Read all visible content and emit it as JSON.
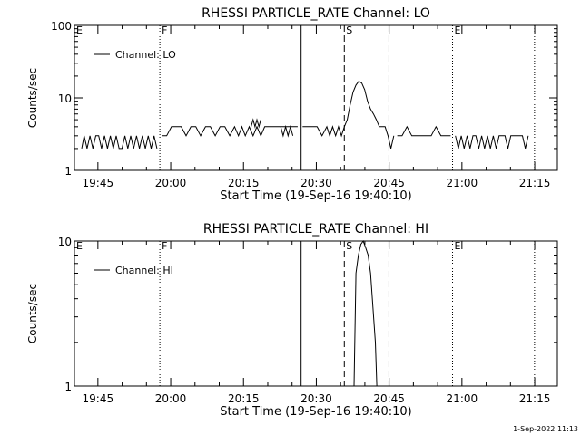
{
  "footer": {
    "timestamp": "1-Sep-2022 11:13"
  },
  "chart_data": [
    {
      "type": "line",
      "title": "RHESSI PARTICLE_RATE Channel: LO",
      "xlabel": "Start Time (19-Sep-16 19:40:10)",
      "ylabel": "Counts/sec",
      "yscale": "log",
      "ylim": [
        1,
        100
      ],
      "xlim_minutes": [
        0,
        99.5
      ],
      "y_tick_labels": [
        "1",
        "10",
        "100"
      ],
      "x_tick_labels": [
        "19:45",
        "20:00",
        "20:15",
        "20:30",
        "20:45",
        "21:00",
        "21:15"
      ],
      "legend": {
        "label": "Channel: LO",
        "position": "top-left"
      },
      "markers": [
        {
          "label": "E",
          "minute": 0,
          "style": "dotted"
        },
        {
          "label": "F",
          "minute": 17.6,
          "style": "dotted"
        },
        {
          "label": "",
          "minute": 46.7,
          "style": "solid"
        },
        {
          "label": "S",
          "minute": 55.6,
          "style": "dashed"
        },
        {
          "label": "",
          "minute": 64.8,
          "style": "dashed"
        },
        {
          "label": "E",
          "minute": 77.9,
          "style": "dotted"
        },
        {
          "label": "",
          "minute": 94.8,
          "style": "dotted"
        }
      ],
      "series": [
        {
          "name": "Channel: LO",
          "segments": [
            {
              "x": [
                1.5,
                2,
                2.6,
                3.2,
                3.8,
                4.4,
                5,
                5.6,
                6.2,
                6.8,
                7.4,
                8,
                8.6,
                9.2,
                9.8,
                10.4,
                11,
                11.6,
                12.2,
                12.8,
                13.4,
                14,
                14.6,
                15.2,
                15.8,
                16.4,
                17
              ],
              "y": [
                2,
                3,
                2,
                3,
                2,
                3,
                3,
                2,
                3,
                2,
                3,
                2,
                3,
                2,
                2,
                3,
                2,
                3,
                2,
                3,
                2,
                3,
                2,
                3,
                2,
                3,
                2
              ]
            },
            {
              "x": [
                18,
                19,
                20,
                21,
                22,
                23,
                24,
                25,
                26,
                27,
                28,
                29,
                30,
                31,
                32,
                33,
                33.8,
                34.5,
                35.2,
                36,
                36.8,
                37.6,
                38.4,
                39.2,
                40,
                41,
                42,
                43,
                44,
                45,
                46
              ],
              "y": [
                3,
                3,
                4,
                4,
                4,
                3,
                4,
                4,
                3,
                4,
                4,
                3,
                4,
                4,
                3,
                4,
                3,
                4,
                3,
                4,
                3,
                4,
                3,
                4,
                4,
                4,
                4,
                4,
                4,
                4,
                4
              ]
            },
            {
              "x": [
                36.4,
                36.8,
                37.2,
                37.6,
                38,
                38.4
              ],
              "y": [
                4,
                5,
                4,
                5,
                4,
                5
              ]
            },
            {
              "x": [
                42.5,
                43,
                43.5,
                44,
                44.5,
                45
              ],
              "y": [
                4,
                3,
                4,
                3,
                4,
                3
              ]
            },
            {
              "x": [
                47,
                48,
                49,
                50,
                51,
                52,
                52.6,
                53.2,
                53.8,
                54.4,
                55,
                55.6,
                56.2,
                56.8,
                57.4,
                58,
                58.6,
                59.2,
                59.8,
                60.4,
                61,
                61.6,
                62.2,
                62.8,
                63.4,
                64,
                64.6,
                65.2,
                65.8
              ],
              "y": [
                4,
                4,
                4,
                4,
                3,
                4,
                3,
                4,
                3,
                4,
                3,
                4,
                5,
                8,
                12,
                15,
                17,
                16,
                13,
                9,
                7,
                6,
                5,
                4,
                4,
                4,
                3,
                2,
                3
              ]
            },
            {
              "x": [
                66.5,
                67.5,
                68.5,
                69.5,
                70.5,
                71.5,
                72.5,
                73.5,
                74.5,
                75.5,
                76.5,
                77.5
              ],
              "y": [
                3,
                3,
                4,
                3,
                3,
                3,
                3,
                3,
                4,
                3,
                3,
                3
              ]
            },
            {
              "x": [
                78.5,
                79.1,
                79.7,
                80.3,
                80.9,
                81.5,
                82.1,
                82.7,
                83.3,
                83.9,
                84.5,
                85.1,
                85.7,
                86.3,
                86.9,
                87.5,
                88.1,
                88.7,
                89.3,
                89.9,
                90.5,
                91.1,
                91.7,
                92.3,
                92.9,
                93.5
              ],
              "y": [
                3,
                2,
                3,
                2,
                3,
                2,
                3,
                3,
                2,
                3,
                2,
                3,
                2,
                3,
                2,
                3,
                3,
                3,
                2,
                3,
                3,
                3,
                3,
                3,
                2,
                3
              ]
            }
          ]
        }
      ]
    },
    {
      "type": "line",
      "title": "RHESSI PARTICLE_RATE Channel: HI",
      "xlabel": "Start Time (19-Sep-16 19:40:10)",
      "ylabel": "Counts/sec",
      "yscale": "log",
      "ylim": [
        1,
        10
      ],
      "xlim_minutes": [
        0,
        99.5
      ],
      "y_tick_labels": [
        "1",
        "10"
      ],
      "x_tick_labels": [
        "19:45",
        "20:00",
        "20:15",
        "20:30",
        "20:45",
        "21:00",
        "21:15"
      ],
      "legend": {
        "label": "Channel: HI",
        "position": "top-left"
      },
      "markers": [
        {
          "label": "E",
          "minute": 0,
          "style": "dotted"
        },
        {
          "label": "F",
          "minute": 17.6,
          "style": "dotted"
        },
        {
          "label": "",
          "minute": 46.7,
          "style": "solid"
        },
        {
          "label": "S",
          "minute": 55.6,
          "style": "dashed"
        },
        {
          "label": "",
          "minute": 64.8,
          "style": "dashed"
        },
        {
          "label": "E",
          "minute": 77.9,
          "style": "dotted"
        },
        {
          "label": "",
          "minute": 94.8,
          "style": "dotted"
        }
      ],
      "series": [
        {
          "name": "Channel: HI",
          "segments": [
            {
              "x": [
                57.6,
                58,
                58.5,
                59,
                59.5,
                60,
                60.5,
                61,
                61.5,
                62,
                62.3
              ],
              "y": [
                1,
                6,
                8,
                9.5,
                10,
                9,
                8,
                6,
                3.5,
                2,
                1
              ]
            }
          ]
        }
      ]
    }
  ]
}
